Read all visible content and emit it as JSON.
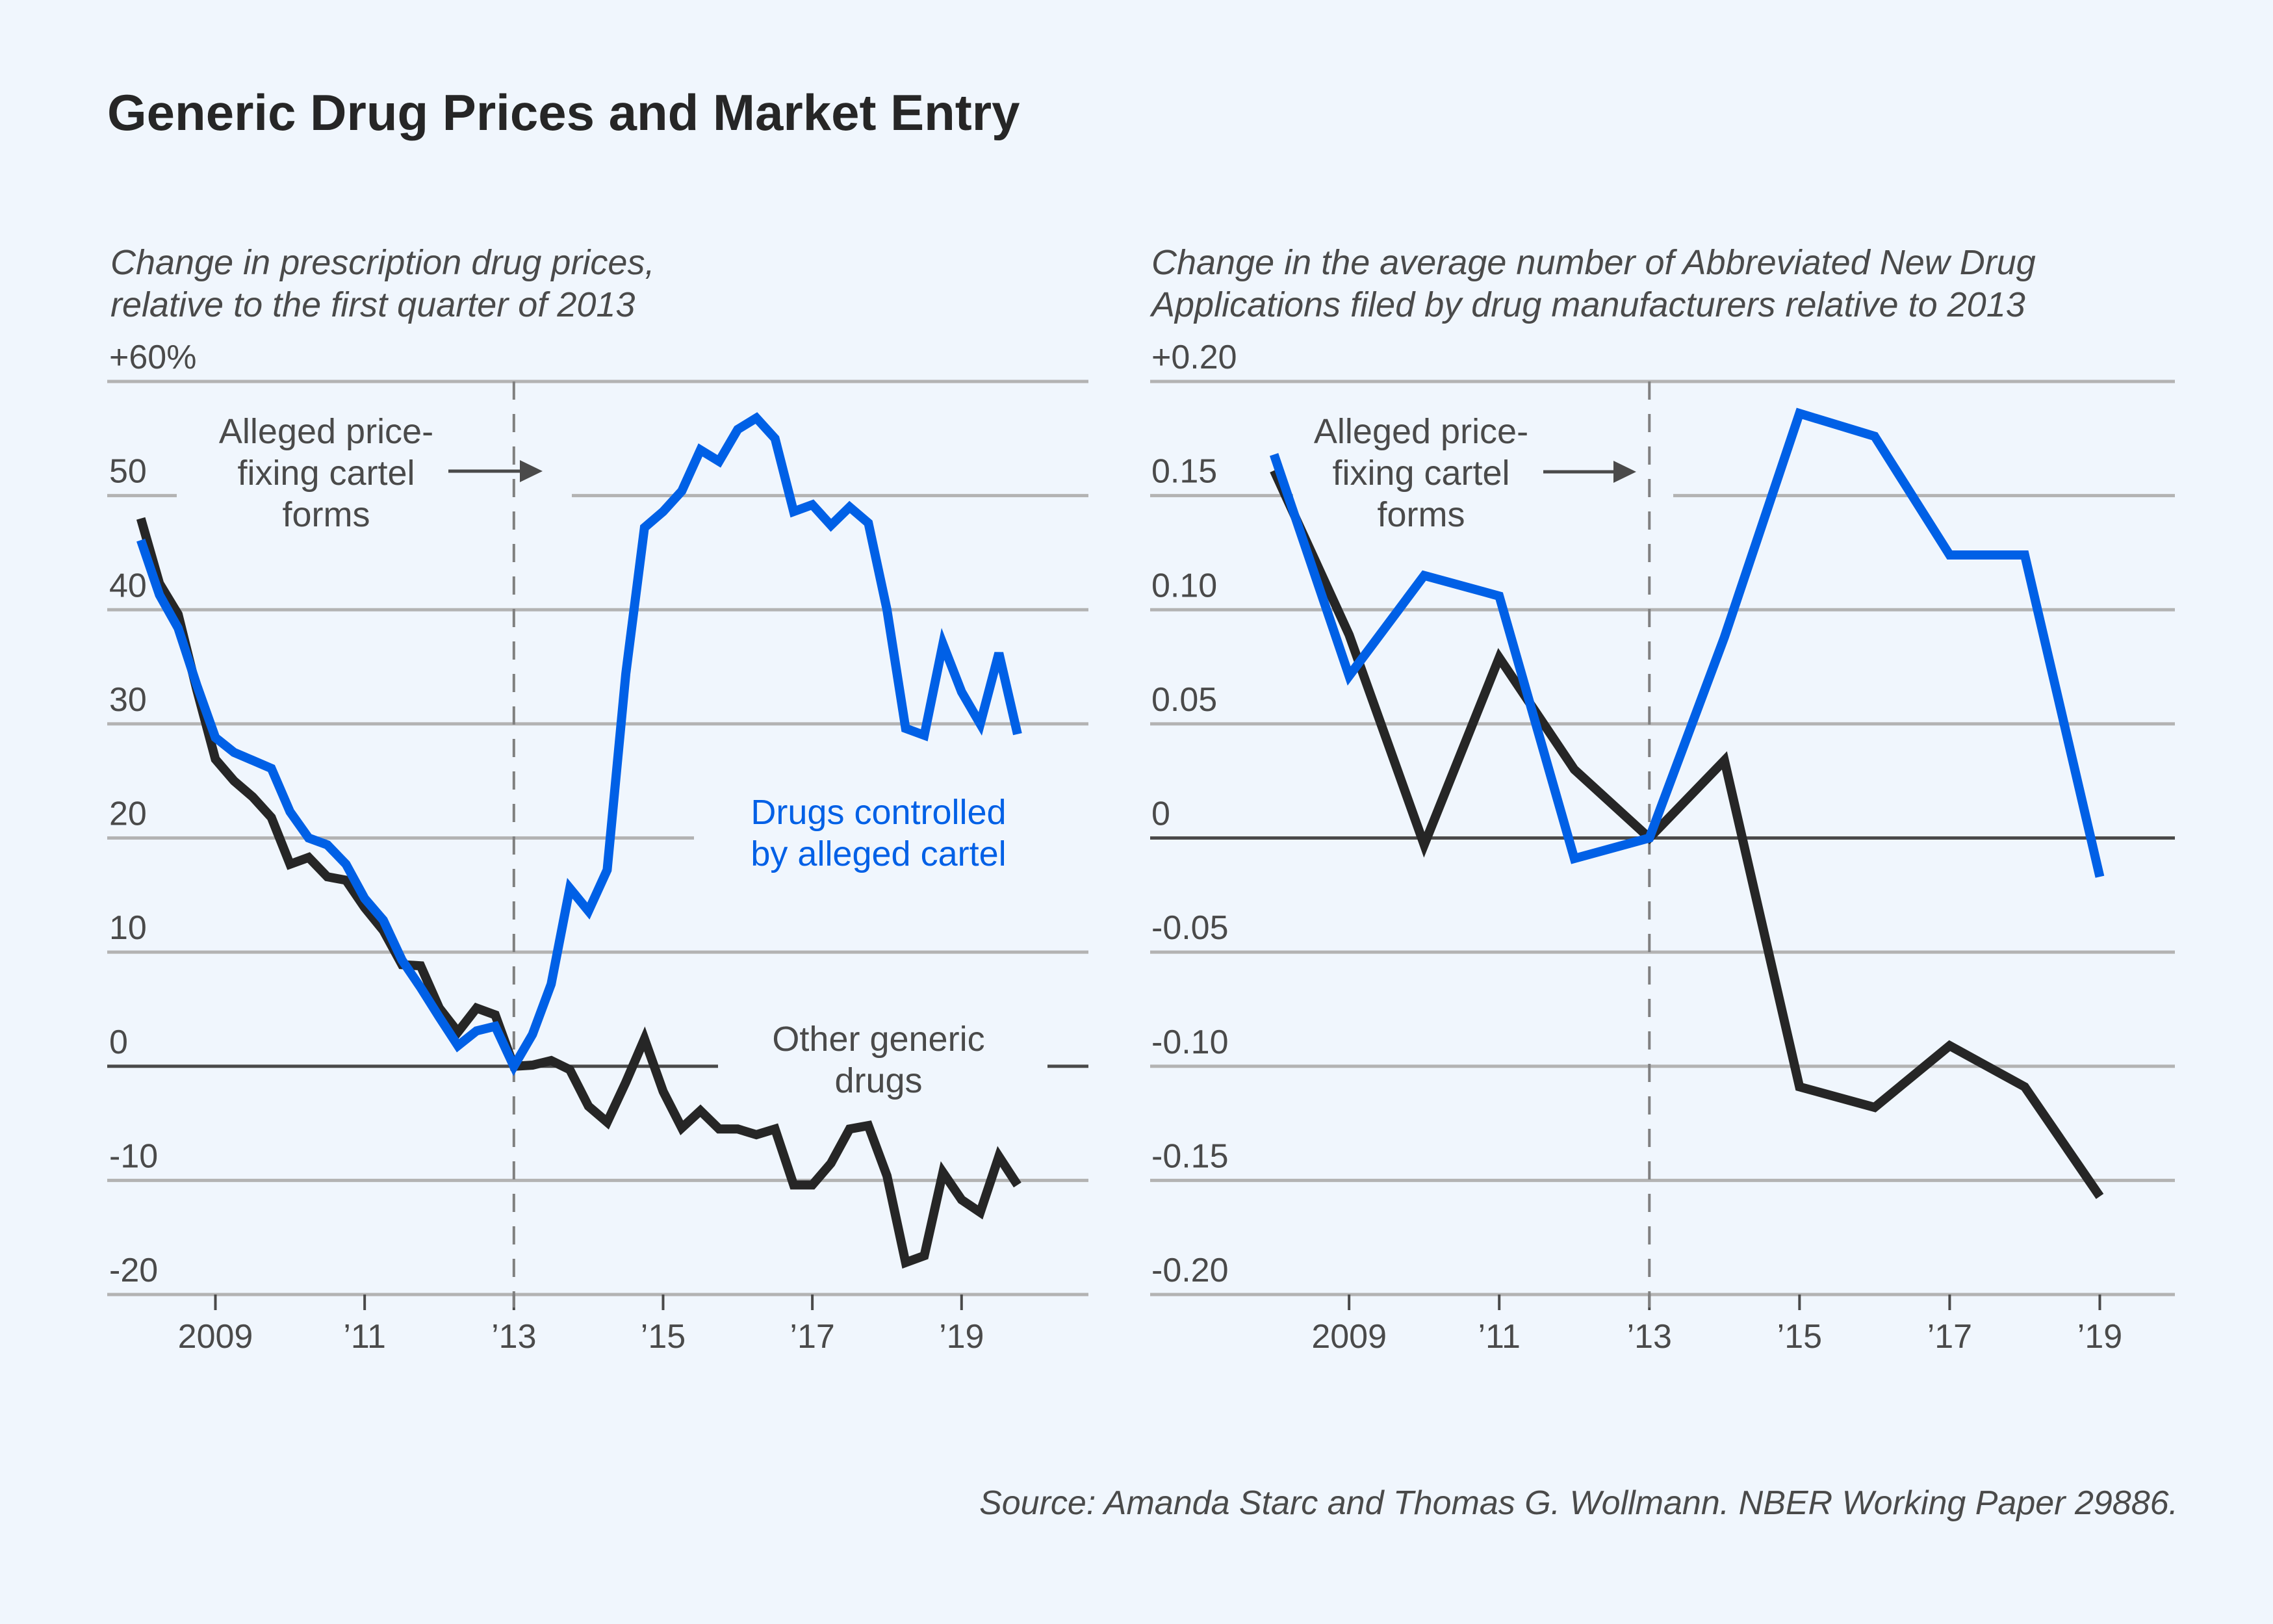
{
  "title": "Generic Drug Prices and Market Entry",
  "source": "Source: Amanda Starc and Thomas G. Wollmann. NBER Working Paper 29886.",
  "colors": {
    "background": "#f0f6fd",
    "cartel": "#0060e6",
    "other": "#262626",
    "text": "#4a4a4a",
    "grid": "#b3b3b3"
  },
  "chart_data": [
    {
      "type": "line",
      "title": "Change in prescription drug prices, relative to the first quarter of 2013",
      "subtitle_lines": [
        "Change in prescription drug prices,",
        "relative to the first quarter of 2013"
      ],
      "xlabel": "",
      "ylabel": "",
      "frequency": "quarterly",
      "x": [
        2008.0,
        2008.25,
        2008.5,
        2008.75,
        2009.0,
        2009.25,
        2009.5,
        2009.75,
        2010.0,
        2010.25,
        2010.5,
        2010.75,
        2011.0,
        2011.25,
        2011.5,
        2011.75,
        2012.0,
        2012.25,
        2012.5,
        2012.75,
        2013.0,
        2013.25,
        2013.5,
        2013.75,
        2014.0,
        2014.25,
        2014.5,
        2014.75,
        2015.0,
        2015.25,
        2015.5,
        2015.75,
        2016.0,
        2016.25,
        2016.5,
        2016.75,
        2017.0,
        2017.25,
        2017.5,
        2017.75,
        2018.0,
        2018.25,
        2018.5,
        2018.75,
        2019.0,
        2019.25,
        2019.5,
        2019.75
      ],
      "xlim": [
        2007.55,
        2020.7
      ],
      "ylim": [
        -20,
        60
      ],
      "yticks": [
        60,
        50,
        40,
        30,
        20,
        10,
        0,
        -10,
        -20
      ],
      "ytick_labels": [
        "+60%",
        "50",
        "40",
        "30",
        "20",
        "10",
        "0",
        "-10",
        "-20"
      ],
      "xticks": [
        2009,
        2011,
        2013,
        2015,
        2017,
        2019
      ],
      "xtick_labels": [
        "2009",
        "’11",
        "’13",
        "’15",
        "’17",
        "’19"
      ],
      "grid": true,
      "event_line": {
        "x": 2013,
        "label_lines": [
          "Alleged price-",
          "fixing cartel",
          "forms"
        ]
      },
      "series": [
        {
          "name": "Drugs controlled by alleged cartel",
          "label_lines": [
            "Drugs controlled",
            "by alleged cartel"
          ],
          "color": "#0060e6",
          "values": [
            46.1,
            41.3,
            38.4,
            33.4,
            28.8,
            27.5,
            26.8,
            26.1,
            22.3,
            20.0,
            19.4,
            17.7,
            14.7,
            12.8,
            9.3,
            6.9,
            4.3,
            1.8,
            3.1,
            3.5,
            0.0,
            2.8,
            7.2,
            15.6,
            13.6,
            17.2,
            34.4,
            47.2,
            48.6,
            50.4,
            54.0,
            53.0,
            55.8,
            56.8,
            55.0,
            48.6,
            49.2,
            47.4,
            49.0,
            47.6,
            40.0,
            29.6,
            29.0,
            37.0,
            32.8,
            30.0,
            36.2,
            29.1
          ]
        },
        {
          "name": "Other generic drugs",
          "label_lines": [
            "Other generic",
            "drugs"
          ],
          "color": "#262626",
          "values": [
            48.0,
            42.3,
            39.6,
            33.0,
            26.9,
            25.0,
            23.6,
            21.8,
            17.7,
            18.3,
            16.6,
            16.3,
            13.9,
            11.9,
            8.9,
            8.8,
            5.1,
            3.0,
            5.1,
            4.5,
            0.0,
            0.1,
            0.5,
            -0.3,
            -3.5,
            -4.9,
            -1.4,
            2.4,
            -2.2,
            -5.4,
            -3.9,
            -5.5,
            -5.5,
            -6.0,
            -5.5,
            -10.4,
            -10.4,
            -8.5,
            -5.5,
            -5.2,
            -9.6,
            -17.2,
            -16.6,
            -9.3,
            -11.7,
            -12.8,
            -7.9,
            -10.4
          ]
        }
      ]
    },
    {
      "type": "line",
      "title": "Change in the average number of Abbreviated New Drug Applications filed by drug manufacturers relative to 2013",
      "subtitle_lines": [
        "Change in the average number of Abbreviated New Drug",
        "Applications filed by drug manufacturers relative to 2013"
      ],
      "xlabel": "",
      "ylabel": "",
      "frequency": "annual",
      "x": [
        2008,
        2009,
        2010,
        2011,
        2012,
        2013,
        2014,
        2015,
        2016,
        2017,
        2018,
        2019
      ],
      "xlim": [
        2006.35,
        2020.0
      ],
      "ylim": [
        -0.2,
        0.2
      ],
      "yticks": [
        0.2,
        0.15,
        0.1,
        0.05,
        0,
        -0.05,
        -0.1,
        -0.15,
        -0.2
      ],
      "ytick_labels": [
        "+0.20",
        "0.15",
        "0.10",
        "0.05",
        "0",
        "-0.05",
        "-0.10",
        "-0.15",
        "-0.20"
      ],
      "xticks": [
        2009,
        2011,
        2013,
        2015,
        2017,
        2019
      ],
      "xtick_labels": [
        "2009",
        "’11",
        "’13",
        "’15",
        "’17",
        "’19"
      ],
      "grid": true,
      "event_line": {
        "x": 2013,
        "label_lines": [
          "Alleged price-",
          "fixing cartel",
          "forms"
        ]
      },
      "series": [
        {
          "name": "Drugs controlled by alleged cartel",
          "color": "#0060e6",
          "values": [
            0.168,
            0.071,
            0.115,
            0.106,
            -0.009,
            0.0,
            0.088,
            0.186,
            0.176,
            0.124,
            0.124,
            -0.017
          ]
        },
        {
          "name": "Other generic drugs",
          "color": "#262626",
          "values": [
            0.161,
            0.089,
            -0.003,
            0.079,
            0.03,
            0.0,
            0.034,
            -0.109,
            -0.118,
            -0.091,
            -0.109,
            -0.157
          ]
        }
      ]
    }
  ]
}
